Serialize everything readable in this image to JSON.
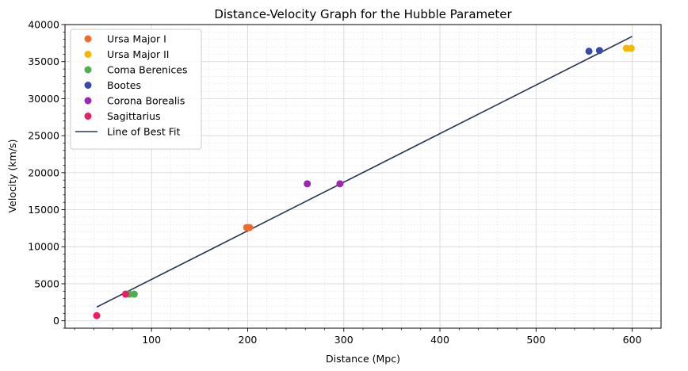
{
  "chart_data": {
    "type": "scatter",
    "title": "Distance-Velocity Graph for the Hubble Parameter",
    "xlabel": "Distance (Mpc)",
    "ylabel": "Velocity (km/s)",
    "xlim": [
      10,
      630
    ],
    "ylim": [
      -1000,
      40000
    ],
    "xticks": [
      100,
      200,
      300,
      400,
      500,
      600
    ],
    "yticks": [
      0,
      5000,
      10000,
      15000,
      20000,
      25000,
      30000,
      35000,
      40000
    ],
    "grid": true,
    "minor_grid": true,
    "legend_position": "upper-left",
    "series": [
      {
        "name": "Ursa Major I",
        "color": "#f26a2a",
        "points": [
          [
            199,
            12600
          ],
          [
            202,
            12600
          ]
        ]
      },
      {
        "name": "Ursa Major II",
        "color": "#f5b800",
        "points": [
          [
            594,
            36800
          ],
          [
            599,
            36800
          ]
        ]
      },
      {
        "name": "Coma Berenices",
        "color": "#4caf50",
        "points": [
          [
            77,
            3600
          ],
          [
            82,
            3600
          ]
        ]
      },
      {
        "name": "Bootes",
        "color": "#3949ab",
        "points": [
          [
            555,
            36400
          ],
          [
            566,
            36500
          ]
        ]
      },
      {
        "name": "Corona Borealis",
        "color": "#9c27b0",
        "points": [
          [
            262,
            18500
          ],
          [
            296,
            18500
          ]
        ]
      },
      {
        "name": "Sagittarius",
        "color": "#e91e63",
        "points": [
          [
            43,
            700
          ],
          [
            73,
            3600
          ]
        ]
      }
    ],
    "fit_line": {
      "name": "Line of Best Fit",
      "color": "#2b3557",
      "points": [
        [
          43,
          1850
        ],
        [
          600,
          38400
        ]
      ]
    }
  }
}
